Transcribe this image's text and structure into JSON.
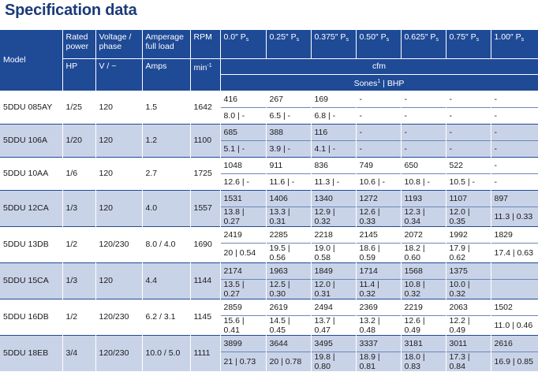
{
  "title": "Specification data",
  "headers": {
    "model": "Model",
    "rated_power": "Rated power",
    "voltage": "Voltage / phase",
    "amperage": "Amperage full load",
    "rpm": "RPM",
    "ps_columns": [
      {
        "value": "0.0″",
        "sub": "s"
      },
      {
        "value": "0.25″",
        "sub": "s"
      },
      {
        "value": "0.375″",
        "sub": "s"
      },
      {
        "value": "0.50″",
        "sub": "s"
      },
      {
        "value": "0.625″",
        "sub": "s"
      },
      {
        "value": "0.75″",
        "sub": "s"
      },
      {
        "value": "1.00″",
        "sub": "s"
      }
    ],
    "ps_letter": "P",
    "hp": "HP",
    "v": "V / ~",
    "amps": "Amps",
    "min": "min",
    "min_sup": "-1",
    "cfm": "cfm",
    "sones": "Sones",
    "sones_sup": "1",
    "bhp": " | BHP"
  },
  "rows": [
    {
      "model": "5DDU 085AY",
      "hp": "1/25",
      "voltage": "120",
      "amps": "1.5",
      "rpm": "1642",
      "cfm": [
        "416",
        "267",
        "169",
        "-",
        "-",
        "-",
        "-"
      ],
      "sones": [
        "8.0 | -",
        "6.5 | -",
        "6.8 | -",
        "-",
        "-",
        "-",
        "-"
      ]
    },
    {
      "model": "5DDU 106A",
      "hp": "1/20",
      "voltage": "120",
      "amps": "1.2",
      "rpm": "1100",
      "cfm": [
        "685",
        "388",
        "116",
        "-",
        "-",
        "-",
        "-"
      ],
      "sones": [
        "5.1 | -",
        "3.9 | -",
        "4.1 | -",
        "-",
        "-",
        "-",
        "-"
      ]
    },
    {
      "model": "5DDU 10AA",
      "hp": "1/6",
      "voltage": "120",
      "amps": "2.7",
      "rpm": "1725",
      "cfm": [
        "1048",
        "911",
        "836",
        "749",
        "650",
        "522",
        "-"
      ],
      "sones": [
        "12.6 | -",
        "11.6 | -",
        "11.3 | -",
        "10.6 | -",
        "10.8 | -",
        "10.5 | -",
        "-"
      ]
    },
    {
      "model": "5DDU 12CA",
      "hp": "1/3",
      "voltage": "120",
      "amps": "4.0",
      "rpm": "1557",
      "cfm": [
        "1531",
        "1406",
        "1340",
        "1272",
        "1193",
        "1107",
        "897"
      ],
      "sones": [
        "13.8 | 0.27",
        "13.3 | 0.31",
        "12.9 | 0.32",
        "12.6 | 0.33",
        "12.3 | 0.34",
        "12.0 | 0.35",
        "11.3 | 0.33"
      ]
    },
    {
      "model": "5DDU 13DB",
      "hp": "1/2",
      "voltage": "120/230",
      "amps": "8.0 / 4.0",
      "rpm": "1690",
      "cfm": [
        "2419",
        "2285",
        "2218",
        "2145",
        "2072",
        "1992",
        "1829"
      ],
      "sones": [
        "20 | 0.54",
        "19.5 | 0.56",
        "19.0 | 0.58",
        "18.6 | 0.59",
        "18.2 | 0.60",
        "17.9 | 0.62",
        "17.4 | 0.63"
      ]
    },
    {
      "model": "5DDU 15CA",
      "hp": "1/3",
      "voltage": "120",
      "amps": "4.4",
      "rpm": "1144",
      "cfm": [
        "2174",
        "1963",
        "1849",
        "1714",
        "1568",
        "1375",
        ""
      ],
      "sones": [
        "13.5 | 0.27",
        "12.5 | 0.30",
        "12.0 | 0.31",
        "11.4 | 0.32",
        "10.8 | 0.32",
        "10.0 | 0.32",
        ""
      ]
    },
    {
      "model": "5DDU 16DB",
      "hp": "1/2",
      "voltage": "120/230",
      "amps": "6.2 / 3.1",
      "rpm": "1145",
      "cfm": [
        "2859",
        "2619",
        "2494",
        "2369",
        "2219",
        "2063",
        "1502"
      ],
      "sones": [
        "15.6 | 0.41",
        "14.5 | 0.45",
        "13.7 | 0.47",
        "13.2 | 0.48",
        "12.6 | 0.49",
        "12.2 | 0.49",
        "11.0 | 0.46"
      ]
    },
    {
      "model": "5DDU 18EB",
      "hp": "3/4",
      "voltage": "120/230",
      "amps": "10.0 / 5.0",
      "rpm": "1111",
      "cfm": [
        "3899",
        "3644",
        "3495",
        "3337",
        "3181",
        "3011",
        "2616"
      ],
      "sones": [
        "21 | 0.73",
        "20 | 0.78",
        "19.8 | 0.80",
        "18.9 | 0.81",
        "18.0 | 0.83",
        "17.3 | 0.84",
        "16.9 | 0.85"
      ]
    }
  ]
}
